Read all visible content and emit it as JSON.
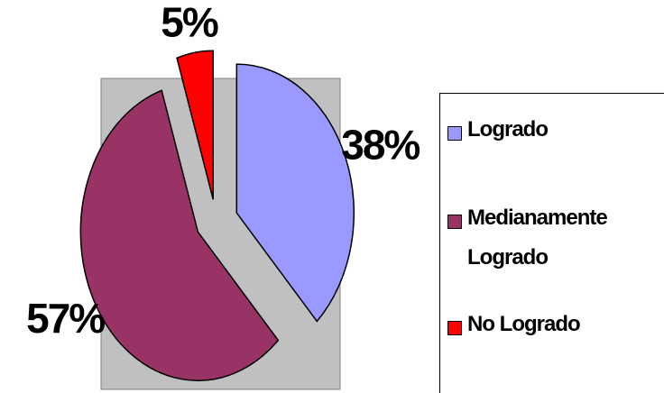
{
  "chart_data": {
    "type": "pie",
    "categories": [
      "Logrado",
      "Medianamente Logrado",
      "No Logrado"
    ],
    "values": [
      38,
      57,
      5
    ],
    "value_labels": [
      "38%",
      "57%",
      "5%"
    ],
    "colors": [
      "#9999ff",
      "#993366",
      "#ff0000"
    ],
    "plot_background": "#c0c0c0"
  }
}
